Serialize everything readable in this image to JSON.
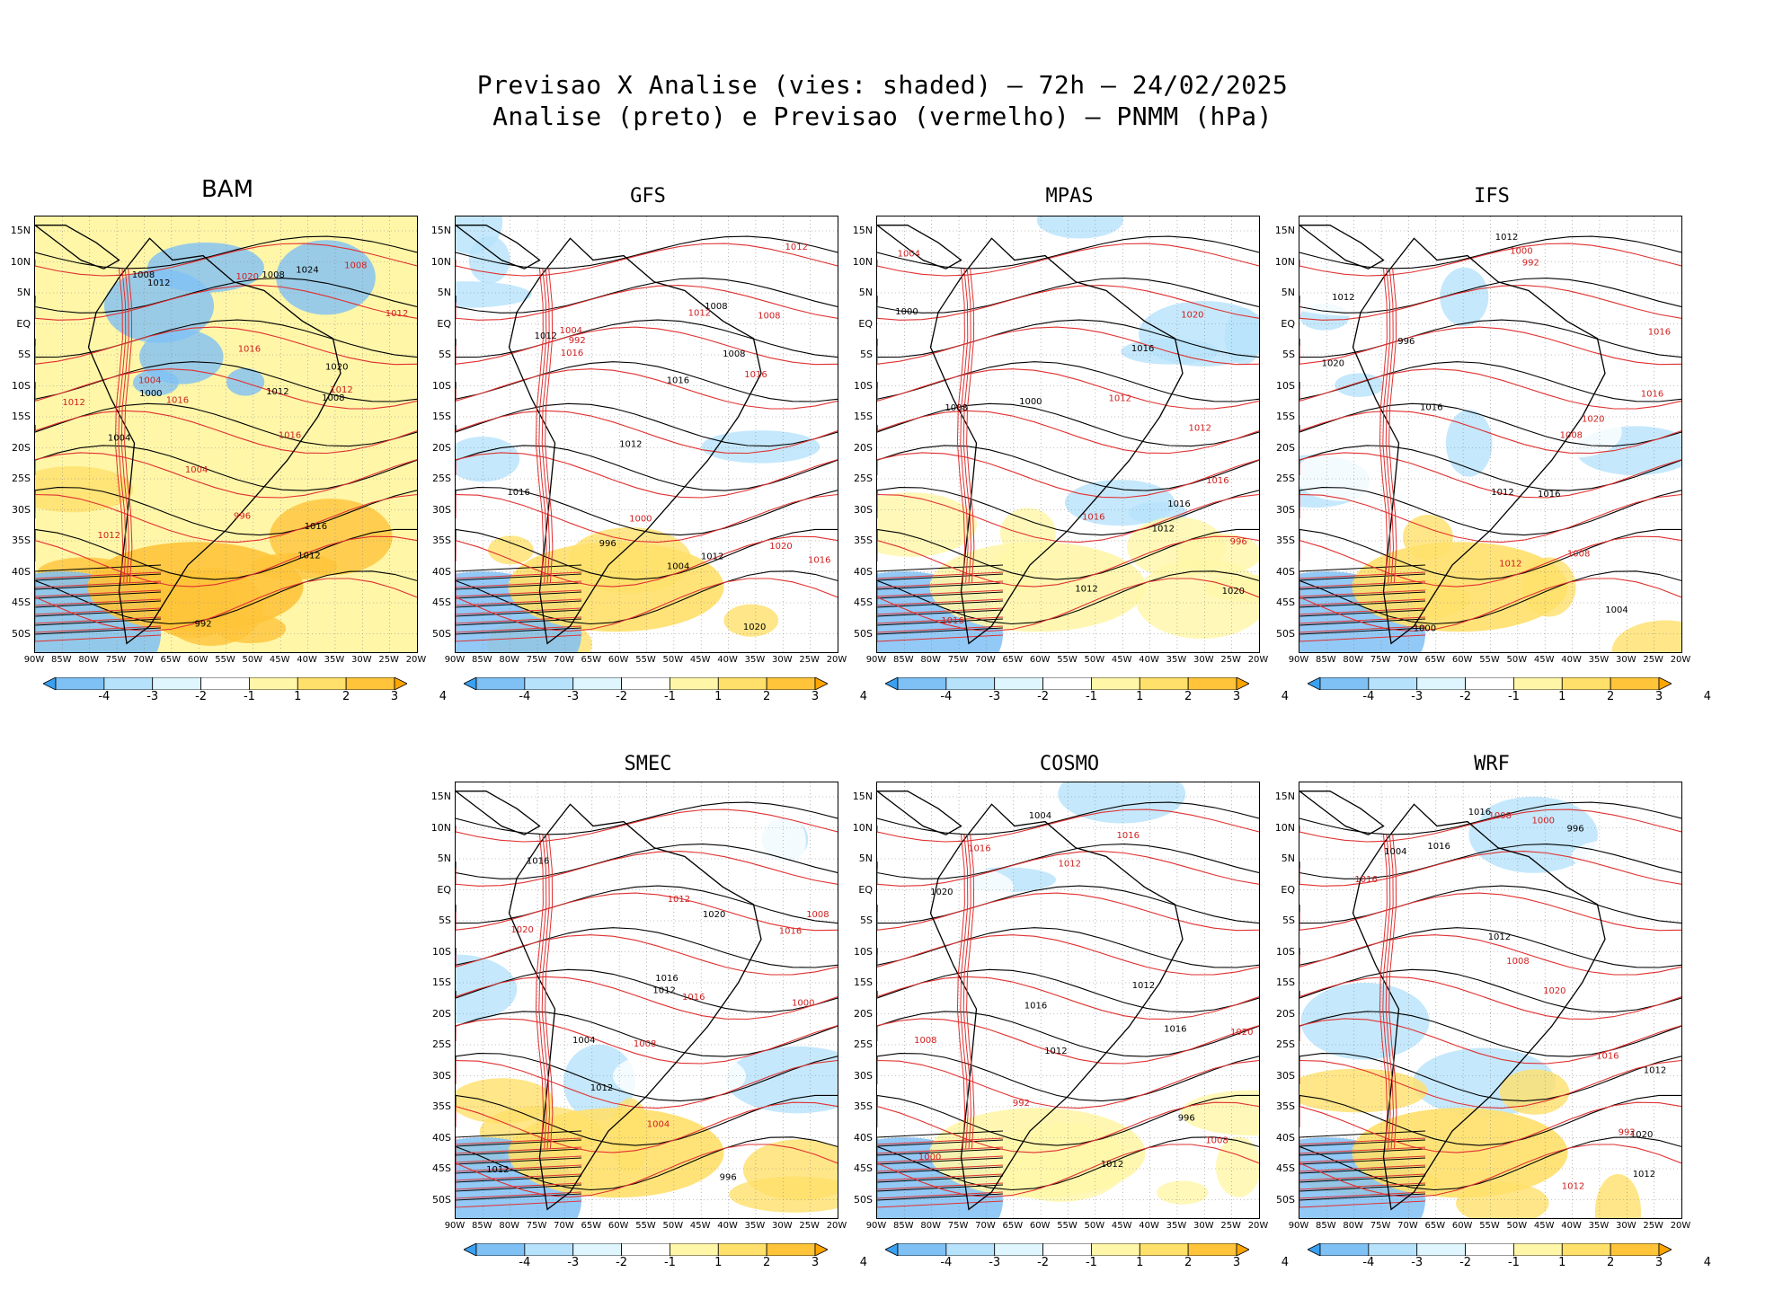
{
  "header": {
    "line1": "Previsao X Analise (vies: shaded) — 72h — 24/02/2025",
    "line2": "Analise (preto) e Previsao (vermelho) — PNMM (hPa)"
  },
  "axes": {
    "lat_labels": [
      "15N",
      "10N",
      "5N",
      "EQ",
      "5S",
      "10S",
      "15S",
      "20S",
      "25S",
      "30S",
      "35S",
      "40S",
      "45S",
      "50S"
    ],
    "lon_labels": [
      "90W",
      "85W",
      "80W",
      "75W",
      "70W",
      "65W",
      "60W",
      "55W",
      "50W",
      "45W",
      "40W",
      "35W",
      "30W",
      "25W",
      "20W"
    ]
  },
  "colorbar": {
    "labels": [
      "-4",
      "-3",
      "-2",
      "-1",
      "1",
      "2",
      "3",
      "4"
    ],
    "colors": [
      "#3aa0f0",
      "#7fc0f5",
      "#b7e2fb",
      "#dff6fe",
      "#ffffff",
      "#fff6a8",
      "#ffe06a",
      "#ffc43a",
      "#ffa500"
    ]
  },
  "panels": [
    {
      "name": "BAM",
      "bias": "warm",
      "labels": [
        "1012",
        "1016",
        "1016",
        "1012",
        "1012",
        "1012",
        "1008",
        "1016",
        "1008",
        "1012",
        "1020",
        "1020",
        "1024",
        "1004",
        "1008",
        "1016",
        "1012",
        "1012",
        "1004",
        "1008",
        "1000",
        "996",
        "992",
        "1004"
      ]
    },
    {
      "name": "GFS",
      "bias": "mixed",
      "labels": [
        "1016",
        "1016",
        "1012",
        "1012",
        "1012",
        "1008",
        "1008",
        "1016",
        "1020",
        "1020",
        "1016",
        "1012",
        "1012",
        "1004",
        "1008",
        "1000",
        "996",
        "992",
        "1004",
        "1016"
      ]
    },
    {
      "name": "MPAS",
      "bias": "cool",
      "labels": [
        "1016",
        "1016",
        "1012",
        "1012",
        "1012",
        "1016",
        "1016",
        "1020",
        "1020",
        "1012",
        "1008",
        "1004",
        "1000",
        "996",
        "1000",
        "1016"
      ]
    },
    {
      "name": "IFS",
      "bias": "mixed",
      "labels": [
        "1016",
        "1016",
        "1012",
        "1012",
        "1012",
        "1008",
        "1016",
        "1020",
        "1020",
        "1016",
        "1012",
        "1008",
        "1004",
        "1000",
        "996",
        "992",
        "1000"
      ]
    },
    {
      "name": "SMEC",
      "bias": "mixed",
      "labels": [
        "1016",
        "1016",
        "1012",
        "1012",
        "1012",
        "1008",
        "1016",
        "1020",
        "1020",
        "1016",
        "1012",
        "1008",
        "1004",
        "1000",
        "996",
        "1004"
      ]
    },
    {
      "name": "COSMO",
      "bias": "cool",
      "labels": [
        "1016",
        "1016",
        "1012",
        "1012",
        "1012",
        "1008",
        "1016",
        "1020",
        "1020",
        "1016",
        "1012",
        "1008",
        "1004",
        "1000",
        "996",
        "992"
      ]
    },
    {
      "name": "WRF",
      "bias": "mixed",
      "labels": [
        "1016",
        "1016",
        "1012",
        "1012",
        "1012",
        "1008",
        "1016",
        "1020",
        "1020",
        "1016",
        "1012",
        "1008",
        "1004",
        "1000",
        "996",
        "992"
      ]
    }
  ]
}
